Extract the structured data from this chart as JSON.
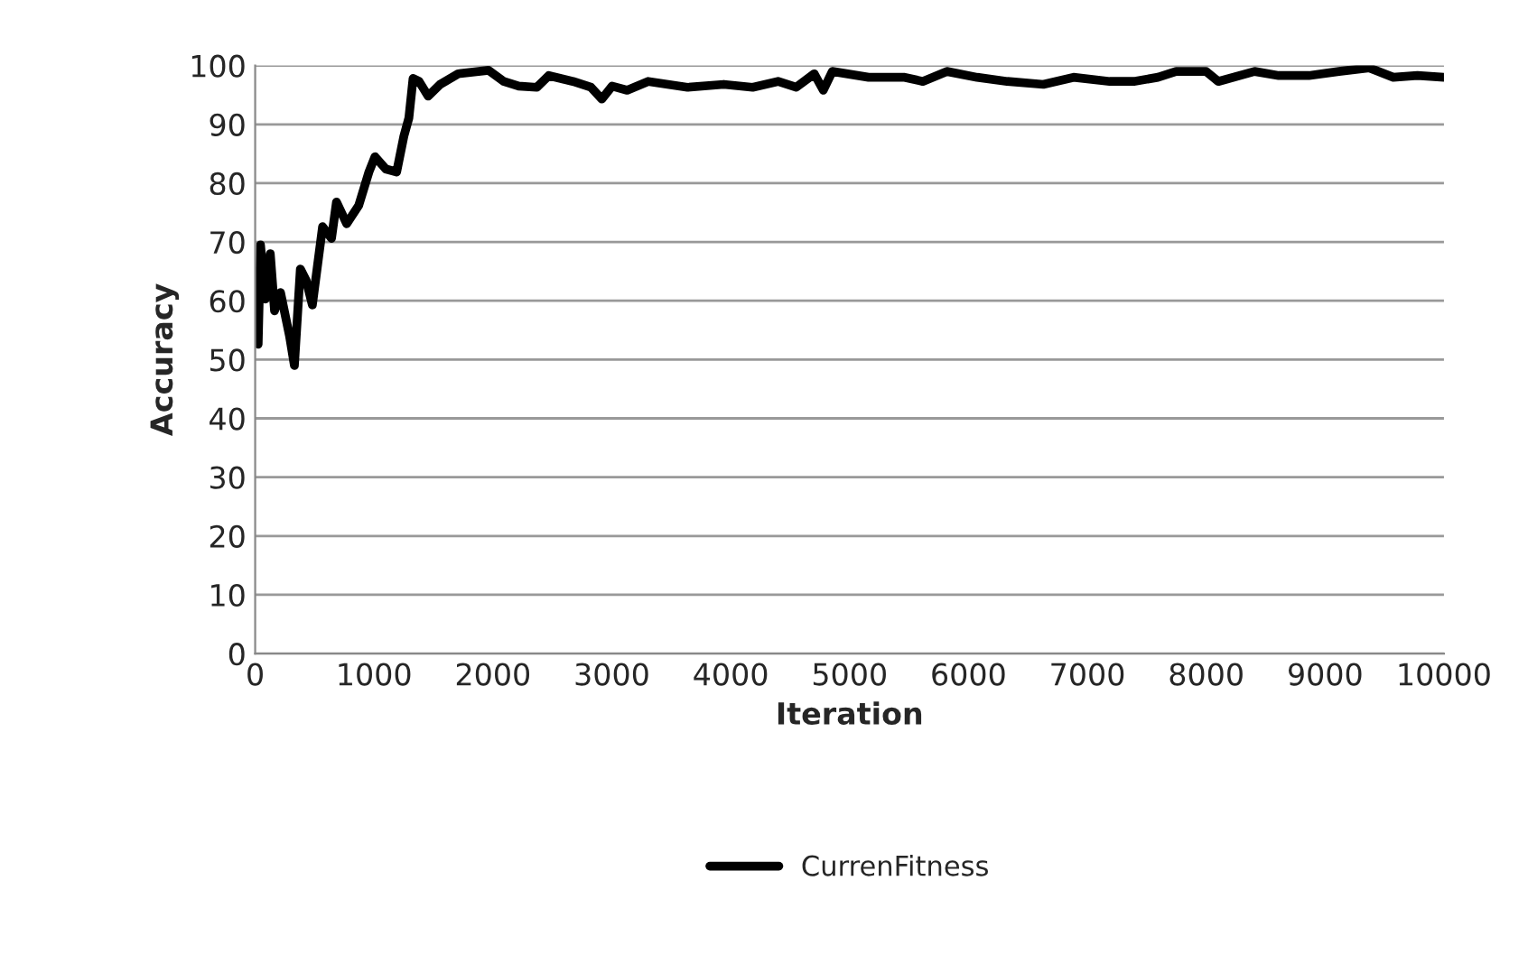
{
  "chart_data": {
    "type": "line",
    "xlabel": "Iteration",
    "ylabel": "Accuracy",
    "xlim": [
      0,
      10000
    ],
    "xticks": [
      0,
      1000,
      2000,
      3000,
      4000,
      5000,
      6000,
      7000,
      8000,
      9000,
      10000
    ],
    "ylim": [
      0,
      100
    ],
    "yticks": [
      0,
      10,
      20,
      30,
      40,
      50,
      60,
      70,
      80,
      90,
      100
    ],
    "grid": "y",
    "legend": "bottom",
    "marker": "none",
    "line_style": "solid",
    "series": [
      {
        "name": "CurrenFitness",
        "color": "#000000",
        "x": [
          25,
          45,
          85,
          127,
          163,
          213,
          289,
          330,
          380,
          430,
          481,
          567,
          642,
          684,
          770,
          871,
          957,
          1008,
          1099,
          1190,
          1251,
          1293,
          1328,
          1379,
          1455,
          1556,
          1708,
          1963,
          2090,
          2217,
          2369,
          2470,
          2673,
          2825,
          2916,
          3002,
          3129,
          3306,
          3637,
          3942,
          4185,
          4398,
          4551,
          4703,
          4779,
          4855,
          5160,
          5464,
          5616,
          5818,
          6073,
          6326,
          6630,
          6884,
          7188,
          7391,
          7594,
          7747,
          8000,
          8102,
          8407,
          8610,
          8864,
          9117,
          9371,
          9574,
          9777,
          10000
        ],
        "values": [
          52.6,
          69.5,
          60.3,
          68,
          58.3,
          61.4,
          54,
          49,
          65.4,
          63.4,
          59.3,
          72.6,
          70.6,
          76.8,
          73.1,
          76.2,
          81.9,
          84.5,
          82.4,
          81.9,
          88,
          91.1,
          97.8,
          97.3,
          94.8,
          96.8,
          98.6,
          99.2,
          97.3,
          96.5,
          96.3,
          98.3,
          97.3,
          96.3,
          94.3,
          96.5,
          95.8,
          97.3,
          96.3,
          96.8,
          96.3,
          97.3,
          96.3,
          98.6,
          95.8,
          99,
          98,
          98,
          97.3,
          99,
          98,
          97.3,
          96.8,
          98,
          97.3,
          97.3,
          98,
          99,
          99,
          97.3,
          99,
          98.3,
          98.3,
          99,
          99.6,
          98,
          98.3,
          98
        ]
      }
    ]
  }
}
